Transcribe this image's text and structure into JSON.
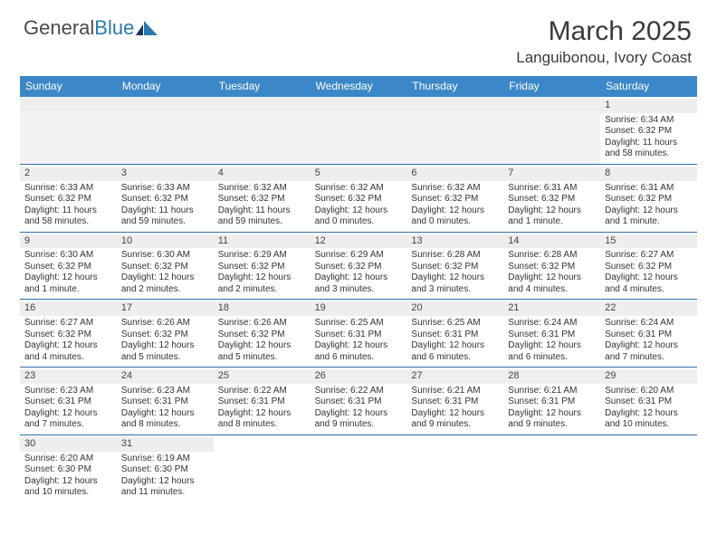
{
  "brand": {
    "part1": "General",
    "part2": "Blue"
  },
  "title": {
    "month": "March 2025",
    "location": "Languibonou, Ivory Coast"
  },
  "colors": {
    "header_bg": "#3b87c8",
    "header_text": "#ffffff",
    "row_divider": "#2f6fa8",
    "daynum_bg": "#eeeeee",
    "empty_bg": "#f2f2f2",
    "logo_blue": "#2a7ab0",
    "text": "#333333"
  },
  "day_headers": [
    "Sunday",
    "Monday",
    "Tuesday",
    "Wednesday",
    "Thursday",
    "Friday",
    "Saturday"
  ],
  "weeks": [
    [
      {
        "empty": true
      },
      {
        "empty": true
      },
      {
        "empty": true
      },
      {
        "empty": true
      },
      {
        "empty": true
      },
      {
        "empty": true
      },
      {
        "day": "1",
        "sunrise": "Sunrise: 6:34 AM",
        "sunset": "Sunset: 6:32 PM",
        "daylight": "Daylight: 11 hours and 58 minutes."
      }
    ],
    [
      {
        "day": "2",
        "sunrise": "Sunrise: 6:33 AM",
        "sunset": "Sunset: 6:32 PM",
        "daylight": "Daylight: 11 hours and 58 minutes."
      },
      {
        "day": "3",
        "sunrise": "Sunrise: 6:33 AM",
        "sunset": "Sunset: 6:32 PM",
        "daylight": "Daylight: 11 hours and 59 minutes."
      },
      {
        "day": "4",
        "sunrise": "Sunrise: 6:32 AM",
        "sunset": "Sunset: 6:32 PM",
        "daylight": "Daylight: 11 hours and 59 minutes."
      },
      {
        "day": "5",
        "sunrise": "Sunrise: 6:32 AM",
        "sunset": "Sunset: 6:32 PM",
        "daylight": "Daylight: 12 hours and 0 minutes."
      },
      {
        "day": "6",
        "sunrise": "Sunrise: 6:32 AM",
        "sunset": "Sunset: 6:32 PM",
        "daylight": "Daylight: 12 hours and 0 minutes."
      },
      {
        "day": "7",
        "sunrise": "Sunrise: 6:31 AM",
        "sunset": "Sunset: 6:32 PM",
        "daylight": "Daylight: 12 hours and 1 minute."
      },
      {
        "day": "8",
        "sunrise": "Sunrise: 6:31 AM",
        "sunset": "Sunset: 6:32 PM",
        "daylight": "Daylight: 12 hours and 1 minute."
      }
    ],
    [
      {
        "day": "9",
        "sunrise": "Sunrise: 6:30 AM",
        "sunset": "Sunset: 6:32 PM",
        "daylight": "Daylight: 12 hours and 1 minute."
      },
      {
        "day": "10",
        "sunrise": "Sunrise: 6:30 AM",
        "sunset": "Sunset: 6:32 PM",
        "daylight": "Daylight: 12 hours and 2 minutes."
      },
      {
        "day": "11",
        "sunrise": "Sunrise: 6:29 AM",
        "sunset": "Sunset: 6:32 PM",
        "daylight": "Daylight: 12 hours and 2 minutes."
      },
      {
        "day": "12",
        "sunrise": "Sunrise: 6:29 AM",
        "sunset": "Sunset: 6:32 PM",
        "daylight": "Daylight: 12 hours and 3 minutes."
      },
      {
        "day": "13",
        "sunrise": "Sunrise: 6:28 AM",
        "sunset": "Sunset: 6:32 PM",
        "daylight": "Daylight: 12 hours and 3 minutes."
      },
      {
        "day": "14",
        "sunrise": "Sunrise: 6:28 AM",
        "sunset": "Sunset: 6:32 PM",
        "daylight": "Daylight: 12 hours and 4 minutes."
      },
      {
        "day": "15",
        "sunrise": "Sunrise: 6:27 AM",
        "sunset": "Sunset: 6:32 PM",
        "daylight": "Daylight: 12 hours and 4 minutes."
      }
    ],
    [
      {
        "day": "16",
        "sunrise": "Sunrise: 6:27 AM",
        "sunset": "Sunset: 6:32 PM",
        "daylight": "Daylight: 12 hours and 4 minutes."
      },
      {
        "day": "17",
        "sunrise": "Sunrise: 6:26 AM",
        "sunset": "Sunset: 6:32 PM",
        "daylight": "Daylight: 12 hours and 5 minutes."
      },
      {
        "day": "18",
        "sunrise": "Sunrise: 6:26 AM",
        "sunset": "Sunset: 6:32 PM",
        "daylight": "Daylight: 12 hours and 5 minutes."
      },
      {
        "day": "19",
        "sunrise": "Sunrise: 6:25 AM",
        "sunset": "Sunset: 6:31 PM",
        "daylight": "Daylight: 12 hours and 6 minutes."
      },
      {
        "day": "20",
        "sunrise": "Sunrise: 6:25 AM",
        "sunset": "Sunset: 6:31 PM",
        "daylight": "Daylight: 12 hours and 6 minutes."
      },
      {
        "day": "21",
        "sunrise": "Sunrise: 6:24 AM",
        "sunset": "Sunset: 6:31 PM",
        "daylight": "Daylight: 12 hours and 6 minutes."
      },
      {
        "day": "22",
        "sunrise": "Sunrise: 6:24 AM",
        "sunset": "Sunset: 6:31 PM",
        "daylight": "Daylight: 12 hours and 7 minutes."
      }
    ],
    [
      {
        "day": "23",
        "sunrise": "Sunrise: 6:23 AM",
        "sunset": "Sunset: 6:31 PM",
        "daylight": "Daylight: 12 hours and 7 minutes."
      },
      {
        "day": "24",
        "sunrise": "Sunrise: 6:23 AM",
        "sunset": "Sunset: 6:31 PM",
        "daylight": "Daylight: 12 hours and 8 minutes."
      },
      {
        "day": "25",
        "sunrise": "Sunrise: 6:22 AM",
        "sunset": "Sunset: 6:31 PM",
        "daylight": "Daylight: 12 hours and 8 minutes."
      },
      {
        "day": "26",
        "sunrise": "Sunrise: 6:22 AM",
        "sunset": "Sunset: 6:31 PM",
        "daylight": "Daylight: 12 hours and 9 minutes."
      },
      {
        "day": "27",
        "sunrise": "Sunrise: 6:21 AM",
        "sunset": "Sunset: 6:31 PM",
        "daylight": "Daylight: 12 hours and 9 minutes."
      },
      {
        "day": "28",
        "sunrise": "Sunrise: 6:21 AM",
        "sunset": "Sunset: 6:31 PM",
        "daylight": "Daylight: 12 hours and 9 minutes."
      },
      {
        "day": "29",
        "sunrise": "Sunrise: 6:20 AM",
        "sunset": "Sunset: 6:31 PM",
        "daylight": "Daylight: 12 hours and 10 minutes."
      }
    ],
    [
      {
        "day": "30",
        "sunrise": "Sunrise: 6:20 AM",
        "sunset": "Sunset: 6:30 PM",
        "daylight": "Daylight: 12 hours and 10 minutes."
      },
      {
        "day": "31",
        "sunrise": "Sunrise: 6:19 AM",
        "sunset": "Sunset: 6:30 PM",
        "daylight": "Daylight: 12 hours and 11 minutes."
      },
      {
        "empty": true
      },
      {
        "empty": true
      },
      {
        "empty": true
      },
      {
        "empty": true
      },
      {
        "empty": true
      }
    ]
  ]
}
